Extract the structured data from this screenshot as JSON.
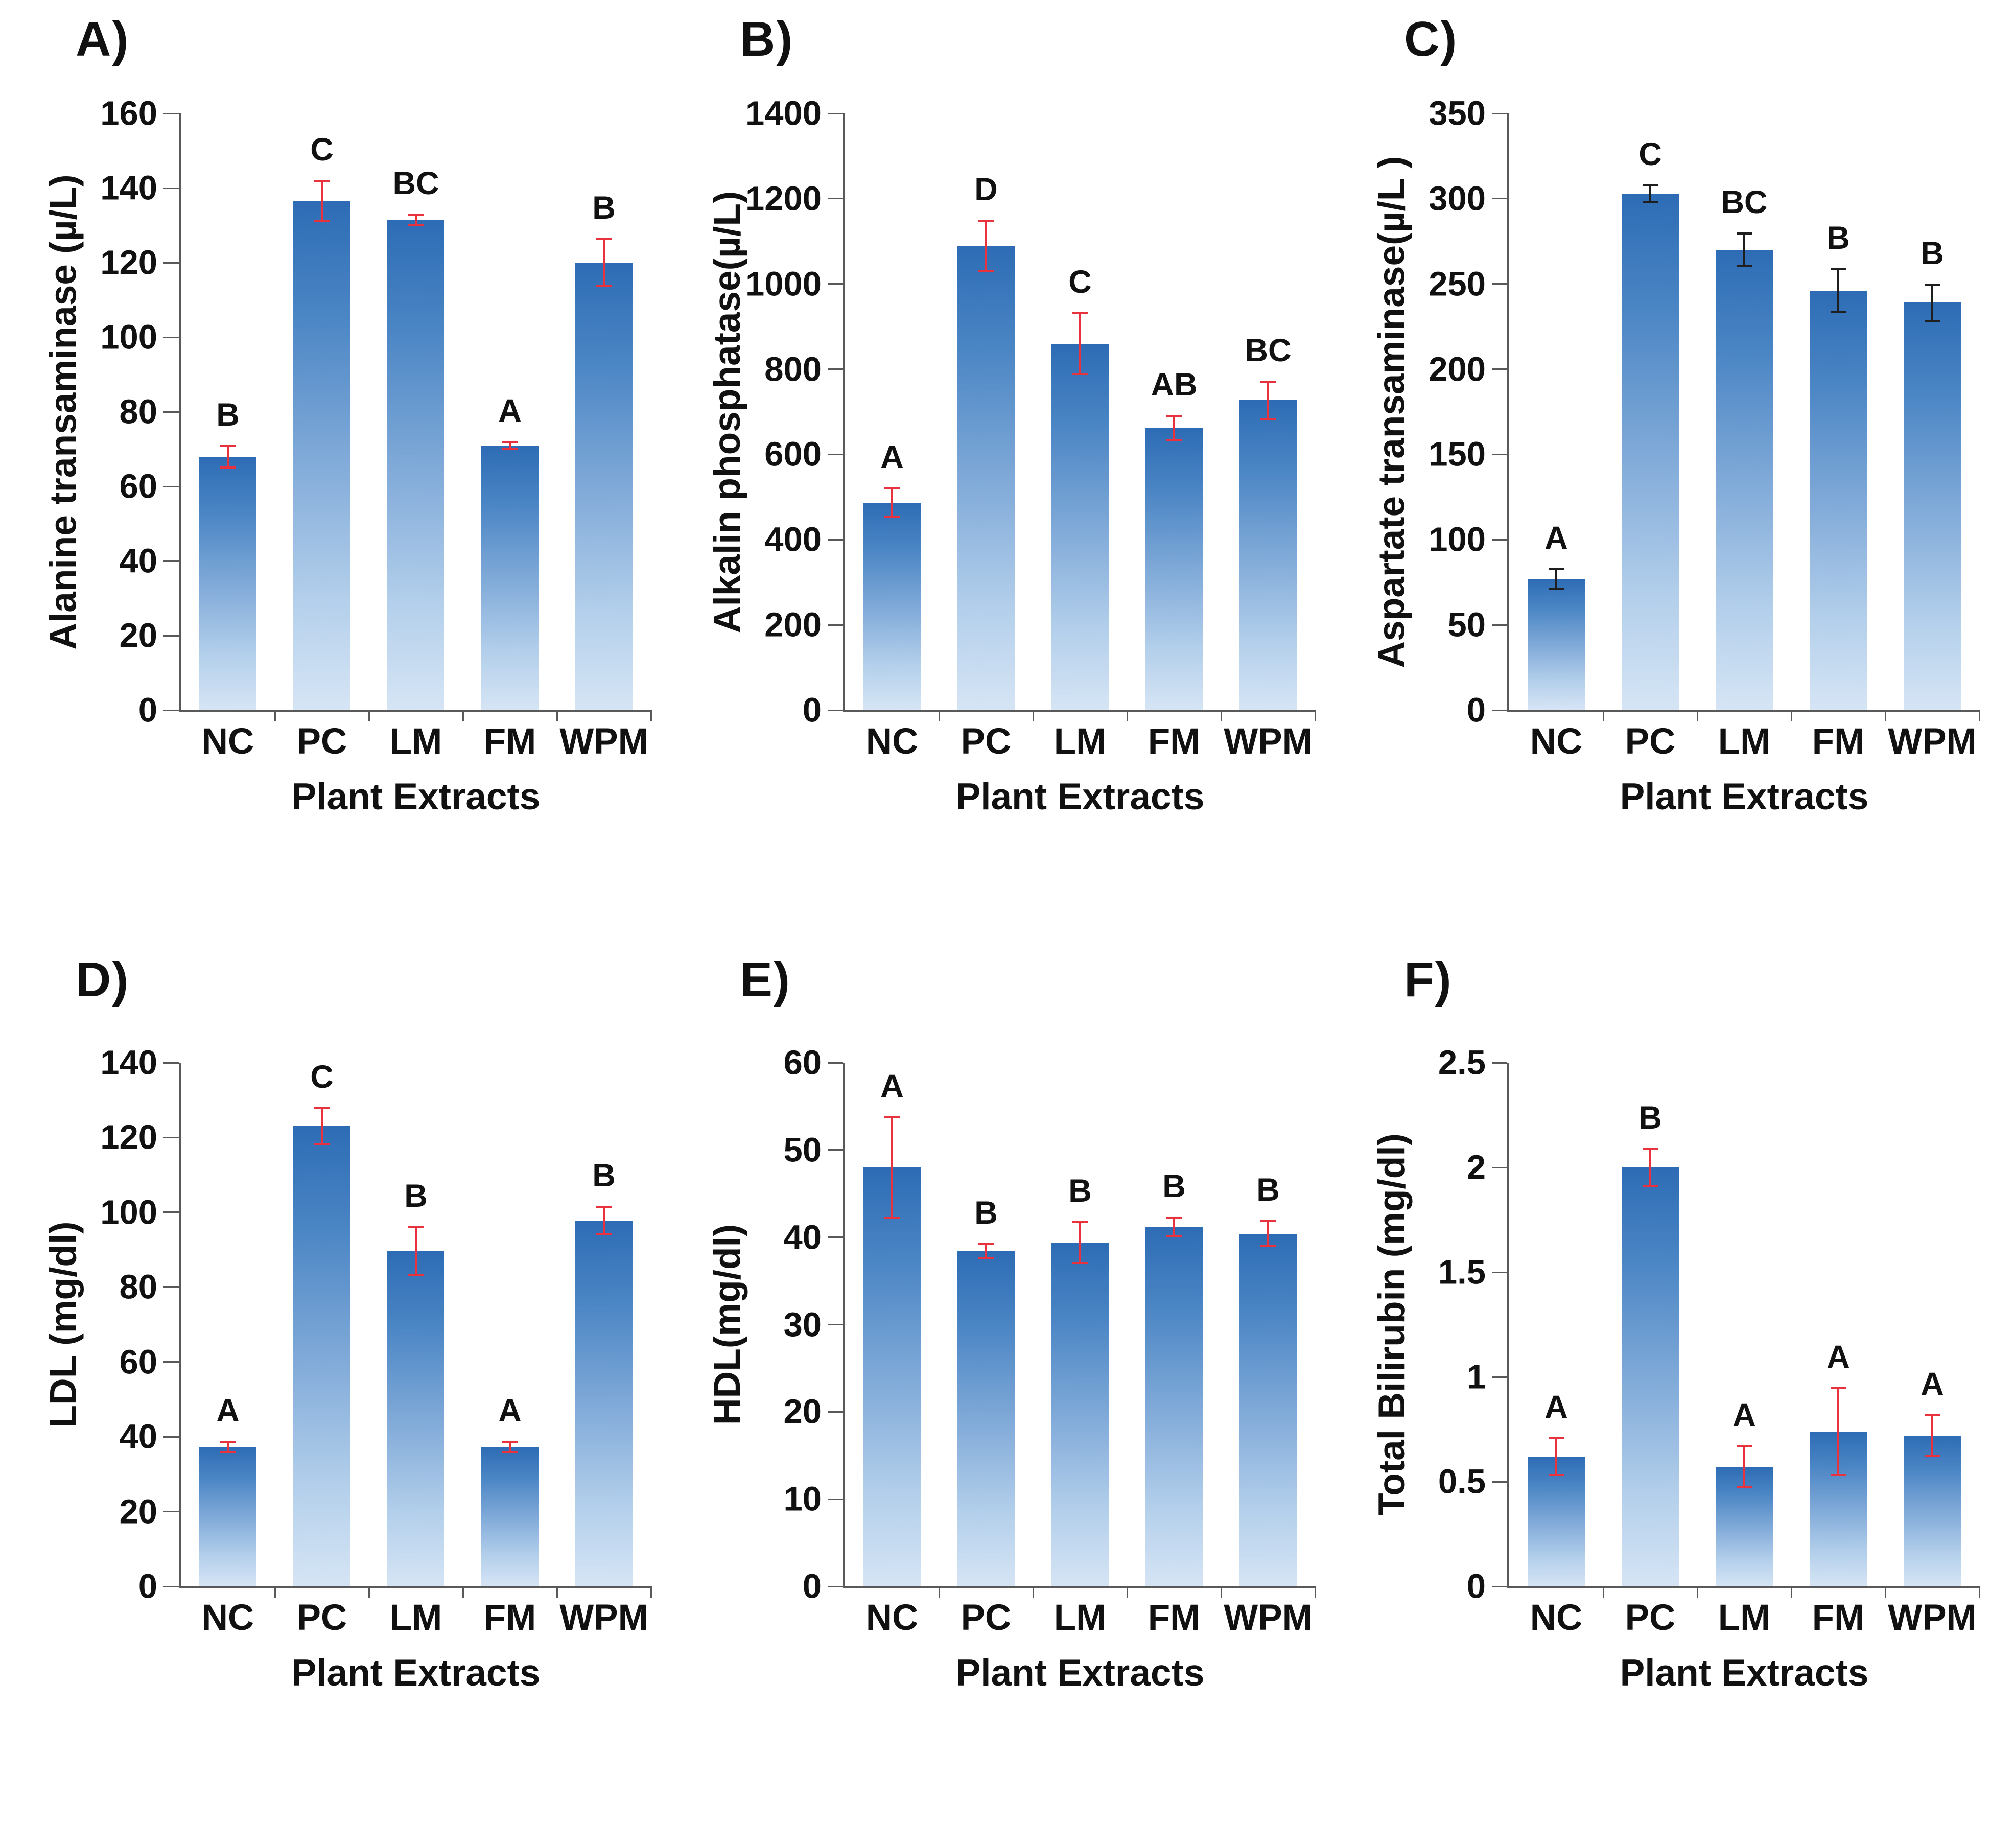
{
  "style": {
    "background": "#ffffff",
    "axis_color": "#595959",
    "text_color": "#111111",
    "error_color_red": "#e8323e",
    "error_color_dark": "#1f1f1f",
    "bar_gradient": [
      "#2d6cb5",
      "#4a85c4",
      "#7fa9d8",
      "#b3cfeb",
      "#d6e5f5"
    ]
  },
  "chart_data": [
    {
      "type": "bar",
      "panel_label": "A)",
      "ylabel": "Alanine transaminase (µ/L)",
      "xlabel": "Plant Extracts",
      "categories": [
        "NC",
        "PC",
        "LM",
        "FM",
        "WPM"
      ],
      "values": [
        68,
        136.5,
        131.5,
        71,
        120
      ],
      "errors": [
        3,
        5.5,
        1.5,
        1,
        6.5
      ],
      "letters": [
        "B",
        "C",
        "BC",
        "A",
        "B"
      ],
      "ylim": [
        0,
        160
      ],
      "yticks": [
        0,
        20,
        40,
        60,
        80,
        100,
        120,
        140,
        160
      ],
      "ytick_labels": [
        "0",
        "20",
        "40",
        "60",
        "80",
        "100",
        "120",
        "140",
        "160"
      ],
      "error_color": "#e8323e",
      "grid": false,
      "legend": false
    },
    {
      "type": "bar",
      "panel_label": "B)",
      "ylabel": "Alkalin phosphatase(µ/L)",
      "xlabel": "Plant Extracts",
      "categories": [
        "NC",
        "PC",
        "LM",
        "FM",
        "WPM"
      ],
      "values": [
        487,
        1090,
        860,
        662,
        727
      ],
      "errors": [
        35,
        60,
        72,
        30,
        45
      ],
      "letters": [
        "A",
        "D",
        "C",
        "AB",
        "BC"
      ],
      "ylim": [
        0,
        1400
      ],
      "yticks": [
        0,
        200,
        400,
        600,
        800,
        1000,
        1200,
        1400
      ],
      "ytick_labels": [
        "0",
        "200",
        "400",
        "600",
        "800",
        "1000",
        "1200",
        "1400"
      ],
      "error_color": "#e8323e",
      "grid": false,
      "legend": false
    },
    {
      "type": "bar",
      "panel_label": "C)",
      "ylabel": "Aspartate transaminase(µ/L )",
      "xlabel": "Plant Extracts",
      "categories": [
        "NC",
        "PC",
        "LM",
        "FM",
        "WPM"
      ],
      "values": [
        77,
        303,
        270,
        246,
        239
      ],
      "errors": [
        6,
        5,
        10,
        13,
        11
      ],
      "letters": [
        "A",
        "C",
        "BC",
        "B",
        "B"
      ],
      "ylim": [
        0,
        350
      ],
      "yticks": [
        0,
        50,
        100,
        150,
        200,
        250,
        300,
        350
      ],
      "ytick_labels": [
        "0",
        "50",
        "100",
        "150",
        "200",
        "250",
        "300",
        "350"
      ],
      "error_color": "#1f1f1f",
      "grid": false,
      "legend": false
    },
    {
      "type": "bar",
      "panel_label": "D)",
      "ylabel": "LDL (mg/dl)",
      "xlabel": "Plant Extracts",
      "categories": [
        "NC",
        "PC",
        "LM",
        "FM",
        "WPM"
      ],
      "values": [
        37.3,
        123,
        89.7,
        37.3,
        97.8
      ],
      "errors": [
        1.5,
        5,
        6.5,
        1.5,
        3.8
      ],
      "letters": [
        "A",
        "C",
        "B",
        "A",
        "B"
      ],
      "ylim": [
        0,
        140
      ],
      "yticks": [
        0,
        20,
        40,
        60,
        80,
        100,
        120,
        140
      ],
      "ytick_labels": [
        "0",
        "20",
        "40",
        "60",
        "80",
        "100",
        "120",
        "140"
      ],
      "error_color": "#e8323e",
      "grid": false,
      "legend": false
    },
    {
      "type": "bar",
      "panel_label": "E)",
      "ylabel": "HDL(mg/dl)",
      "xlabel": "Plant Extracts",
      "categories": [
        "NC",
        "PC",
        "LM",
        "FM",
        "WPM"
      ],
      "values": [
        48,
        38.4,
        39.4,
        41.2,
        40.4
      ],
      "errors": [
        5.8,
        0.9,
        2.4,
        1.1,
        1.5
      ],
      "letters": [
        "A",
        "B",
        "B",
        "B",
        "B"
      ],
      "ylim": [
        0,
        60
      ],
      "yticks": [
        0,
        10,
        20,
        30,
        40,
        50,
        60
      ],
      "ytick_labels": [
        "0",
        "10",
        "20",
        "30",
        "40",
        "50",
        "60"
      ],
      "error_color": "#e8323e",
      "grid": false,
      "legend": false
    },
    {
      "type": "bar",
      "panel_label": "F)",
      "ylabel": "Total Bilirubin (mg/dl)",
      "xlabel": "Plant Extracts",
      "categories": [
        "NC",
        "PC",
        "LM",
        "FM",
        "WPM"
      ],
      "values": [
        0.62,
        2.0,
        0.57,
        0.74,
        0.72
      ],
      "errors": [
        0.09,
        0.09,
        0.1,
        0.21,
        0.1
      ],
      "letters": [
        "A",
        "B",
        "A",
        "A",
        "A"
      ],
      "ylim": [
        0,
        2.5
      ],
      "yticks": [
        0,
        0.5,
        1,
        1.5,
        2,
        2.5
      ],
      "ytick_labels": [
        "0",
        "0.5",
        "1",
        "1.5",
        "2",
        "2.5"
      ],
      "error_color": "#e8323e",
      "grid": false,
      "legend": false
    }
  ]
}
